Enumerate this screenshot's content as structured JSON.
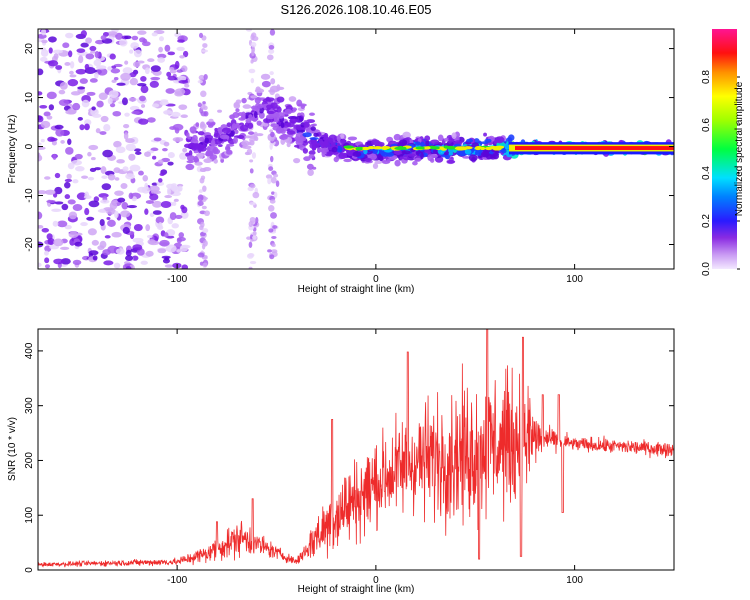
{
  "title": "S126.2026.108.10.46.E05",
  "colors": {
    "snr_line": "#ee2b2b",
    "axis": "#000000",
    "scatter_palette": [
      "#e8d6fb",
      "#cfa6f5",
      "#a55cef",
      "#7a1de6",
      "#5a06d8",
      "#1e40ff",
      "#00b8ff",
      "#00e6c8",
      "#22e022",
      "#f0f000",
      "#ff8800",
      "#ff1010",
      "#ee1166"
    ]
  },
  "chart_data": [
    {
      "type": "heatmap",
      "title": "S126.2026.108.10.46.E05",
      "xlabel": "Height of straight line (km)",
      "ylabel": "Frequency (Hz)",
      "xlim": [
        -170,
        150
      ],
      "ylim": [
        -25,
        24
      ],
      "xticks": [
        -100,
        0,
        100
      ],
      "yticks": [
        -20,
        -10,
        0,
        10,
        20
      ],
      "xtick_labels": [
        "-100",
        "0",
        "100"
      ],
      "ytick_labels": [
        "-20",
        "-10",
        "0",
        "10",
        "20"
      ],
      "colorbar": {
        "label": "Normalized spectral amplitude",
        "range": [
          0.0,
          1.0
        ],
        "ticks": [
          0.0,
          0.2,
          0.4,
          0.6,
          0.8
        ],
        "tick_labels": [
          "0.0",
          "0.2",
          "0.4",
          "0.6",
          "0.8"
        ]
      },
      "ridge": [
        {
          "x": -95,
          "freq": 0,
          "amp": 0.3
        },
        {
          "x": -75,
          "freq": 2,
          "amp": 0.3
        },
        {
          "x": -55,
          "freq": 8,
          "amp": 0.3
        },
        {
          "x": -45,
          "freq": 5,
          "amp": 0.35
        },
        {
          "x": -30,
          "freq": 1,
          "amp": 0.4
        },
        {
          "x": -10,
          "freq": -1,
          "amp": 0.45
        },
        {
          "x": 20,
          "freq": -0.5,
          "amp": 0.55
        },
        {
          "x": 65,
          "freq": -0.3,
          "amp": 0.65
        },
        {
          "x": 70,
          "freq": -0.3,
          "amp": 0.95
        },
        {
          "x": 150,
          "freq": -0.3,
          "amp": 0.95
        }
      ]
    },
    {
      "type": "line",
      "xlabel": "Height of straight line (km)",
      "ylabel": "SNR (10 * v/v)",
      "xlim": [
        -170,
        150
      ],
      "ylim": [
        0,
        440
      ],
      "xticks": [
        -100,
        0,
        100
      ],
      "yticks": [
        0,
        100,
        200,
        300,
        400
      ],
      "xtick_labels": [
        "-100",
        "0",
        "100"
      ],
      "ytick_labels": [
        "0",
        "100",
        "200",
        "300",
        "400"
      ],
      "series": [
        {
          "name": "SNR",
          "envelope": [
            {
              "x": -170,
              "base": 10,
              "spread": 6
            },
            {
              "x": -100,
              "base": 15,
              "spread": 10
            },
            {
              "x": -85,
              "base": 30,
              "spread": 25
            },
            {
              "x": -68,
              "base": 60,
              "spread": 50
            },
            {
              "x": -55,
              "base": 40,
              "spread": 25
            },
            {
              "x": -40,
              "base": 15,
              "spread": 8
            },
            {
              "x": -30,
              "base": 60,
              "spread": 60
            },
            {
              "x": -20,
              "base": 100,
              "spread": 100
            },
            {
              "x": 0,
              "base": 160,
              "spread": 120
            },
            {
              "x": 20,
              "base": 200,
              "spread": 140
            },
            {
              "x": 40,
              "base": 210,
              "spread": 180
            },
            {
              "x": 60,
              "base": 230,
              "spread": 190
            },
            {
              "x": 75,
              "base": 240,
              "spread": 170
            },
            {
              "x": 85,
              "base": 240,
              "spread": 30
            },
            {
              "x": 100,
              "base": 230,
              "spread": 20
            },
            {
              "x": 150,
              "base": 220,
              "spread": 20
            }
          ],
          "peaks": [
            {
              "x": -80,
              "y": 88
            },
            {
              "x": -62,
              "y": 130
            },
            {
              "x": -22,
              "y": 275
            },
            {
              "x": 16,
              "y": 398
            },
            {
              "x": 56,
              "y": 440
            },
            {
              "x": 74,
              "y": 425
            },
            {
              "x": 84,
              "y": 320
            },
            {
              "x": 92,
              "y": 320
            }
          ],
          "dips": [
            {
              "x": 52,
              "y": 20
            },
            {
              "x": 73,
              "y": 25
            },
            {
              "x": 94,
              "y": 105
            }
          ]
        }
      ]
    }
  ]
}
